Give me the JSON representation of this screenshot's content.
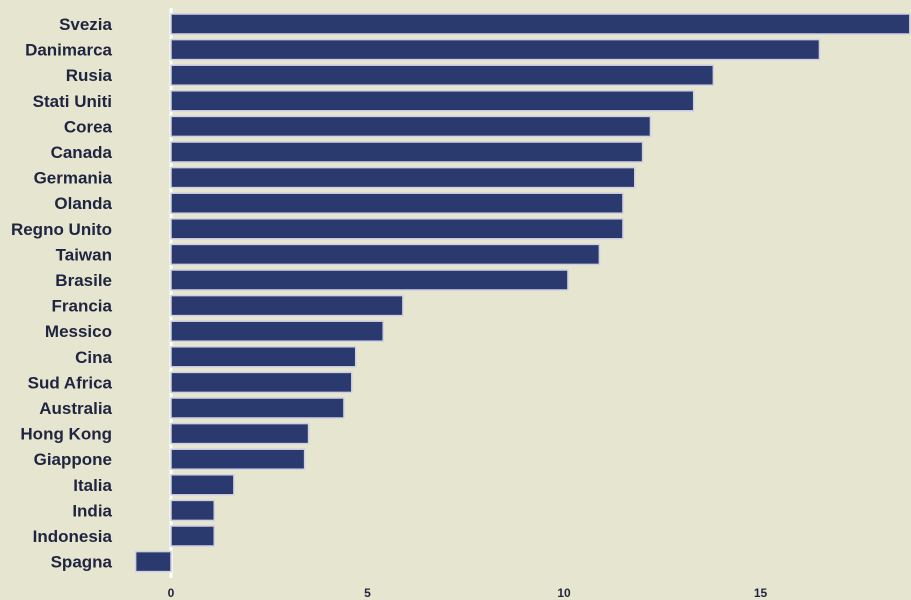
{
  "chart_data": {
    "type": "bar",
    "orientation": "horizontal",
    "categories": [
      "Svezia",
      "Danimarca",
      "Rusia",
      "Stati Uniti",
      "Corea",
      "Canada",
      "Germania",
      "Olanda",
      "Regno Unito",
      "Taiwan",
      "Brasile",
      "Francia",
      "Messico",
      "Cina",
      "Sud Africa",
      "Australia",
      "Hong Kong",
      "Giappone",
      "Italia",
      "India",
      "Indonesia",
      "Spagna"
    ],
    "values": [
      18.8,
      16.5,
      13.8,
      13.3,
      12.2,
      12.0,
      11.8,
      11.5,
      11.5,
      10.9,
      10.1,
      5.9,
      5.4,
      4.7,
      4.6,
      4.4,
      3.5,
      3.4,
      1.6,
      1.1,
      1.1,
      -0.9
    ],
    "xlim": [
      -1,
      18.8
    ],
    "xticks": [
      0,
      5,
      10,
      15
    ],
    "title": "",
    "xlabel": "",
    "ylabel": "",
    "grid": false,
    "colors": {
      "background": "#e6e5cf",
      "bar": "#2a3a6e",
      "bar_edge": "#cfd0e2",
      "zero_line": "#ffffff",
      "text": "#1f2440"
    }
  }
}
